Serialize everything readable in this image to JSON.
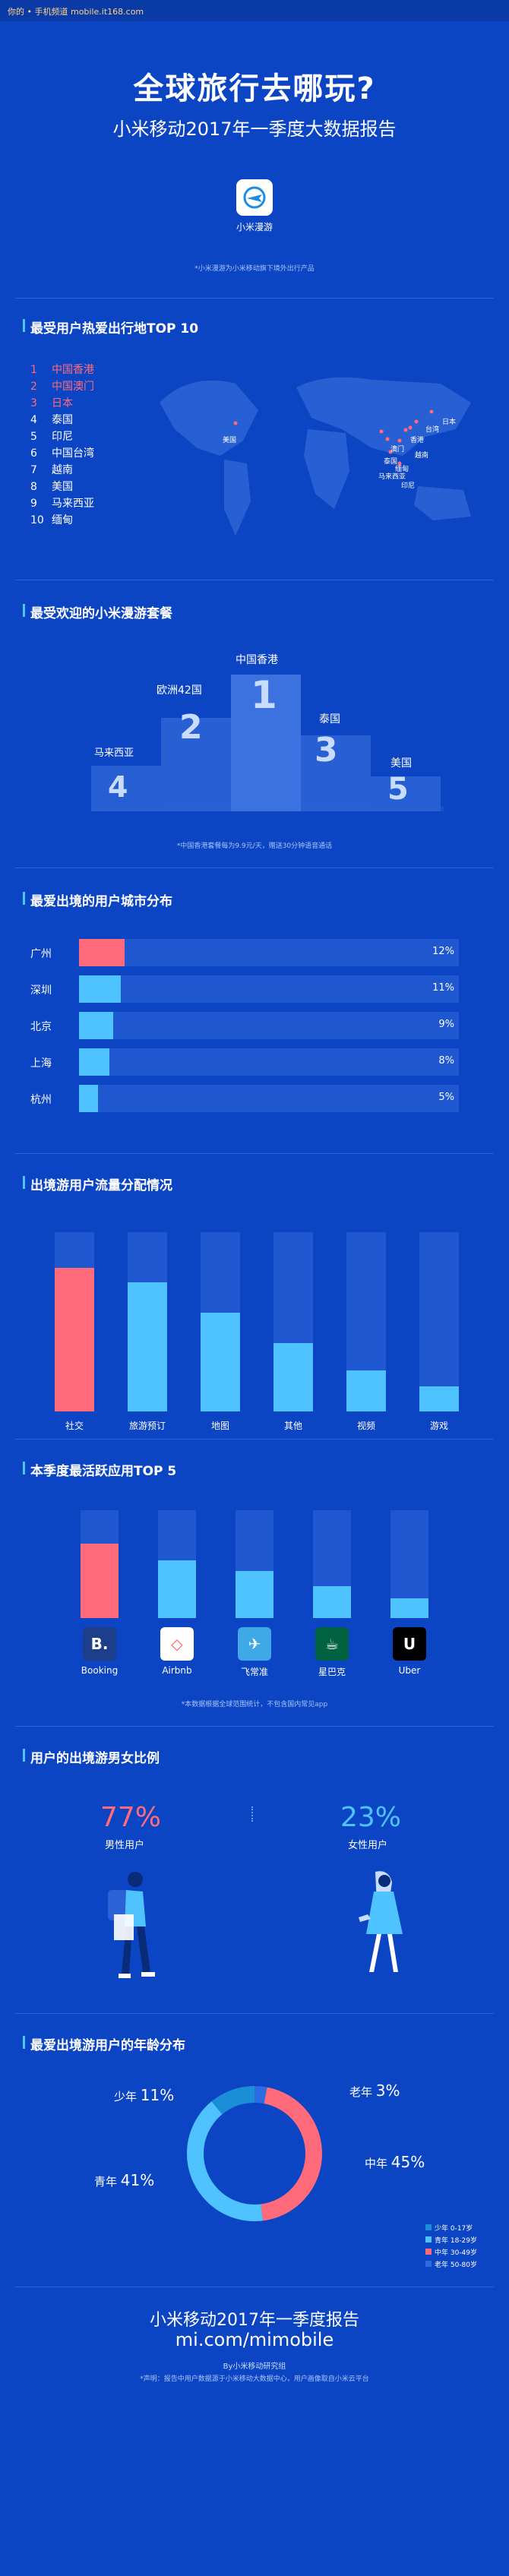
{
  "topbar": {
    "text": "你的 • 手机频道 mobile.it168.com"
  },
  "header": {
    "title": "全球旅行去哪玩?",
    "subtitle": "小米移动2017年一季度大数据报告",
    "app_name": "小米漫游",
    "note": "*小米漫游为小米移动旗下境外出行产品"
  },
  "colors": {
    "bg": "#0c45c4",
    "red": "#ff6b7a",
    "cyan": "#4fc3ff",
    "track": "#1e57d0",
    "dark": "#0a3aa6"
  },
  "section1": {
    "title": "最受用户热爱出行地TOP 10",
    "items": [
      {
        "n": "1",
        "name": "中国香港"
      },
      {
        "n": "2",
        "name": "中国澳门"
      },
      {
        "n": "3",
        "name": "日本"
      },
      {
        "n": "4",
        "name": "泰国"
      },
      {
        "n": "5",
        "name": "印尼"
      },
      {
        "n": "6",
        "name": "中国台湾"
      },
      {
        "n": "7",
        "name": "越南"
      },
      {
        "n": "8",
        "name": "美国"
      },
      {
        "n": "9",
        "name": "马来西亚"
      },
      {
        "n": "10",
        "name": "缅甸"
      }
    ],
    "map_labels": [
      "美国",
      "日本",
      "台湾",
      "香港",
      "澳门",
      "越南",
      "泰国",
      "缅甸",
      "马来西亚",
      "印尼"
    ]
  },
  "section2": {
    "title": "最受欢迎的小米漫游套餐",
    "podium": [
      {
        "name": "马来西亚",
        "rank": "4"
      },
      {
        "name": "欧洲42国",
        "rank": "2"
      },
      {
        "name": "中国香港",
        "rank": "1"
      },
      {
        "name": "泰国",
        "rank": "3"
      },
      {
        "name": "美国",
        "rank": "5"
      }
    ],
    "note": "*中国香港套餐每为9.9元/天，赠送30分钟语音通话"
  },
  "section3": {
    "title": "最爱出境的用户城市分布",
    "rows": [
      {
        "city": "广州",
        "pct": "12%",
        "value": 12
      },
      {
        "city": "深圳",
        "pct": "11%",
        "value": 11
      },
      {
        "city": "北京",
        "pct": "9%",
        "value": 9
      },
      {
        "city": "上海",
        "pct": "8%",
        "value": 8
      },
      {
        "city": "杭州",
        "pct": "5%",
        "value": 5
      }
    ]
  },
  "section4": {
    "title": "出境游用户流量分配情况"
  },
  "section5": {
    "title": "本季度最活跃应用TOP 5",
    "apps": [
      {
        "name": "Booking",
        "logo": "B.",
        "icon": "booking-icon",
        "color": "#1d3e8a",
        "value": 1.0
      },
      {
        "name": "Airbnb",
        "logo": "◇",
        "icon": "airbnb-icon",
        "color": "#ffffff",
        "value": 0.78
      },
      {
        "name": "飞常准",
        "logo": "✈",
        "icon": "feichangzhun-icon",
        "color": "#3fa9e8",
        "value": 0.63
      },
      {
        "name": "星巴克",
        "logo": "☕",
        "icon": "starbucks-icon",
        "color": "#006241",
        "value": 0.43
      },
      {
        "name": "Uber",
        "logo": "U",
        "icon": "uber-icon",
        "color": "#000000",
        "value": 0.27
      }
    ],
    "note": "*本数据根据全球范围统计，不包含国内常见app"
  },
  "section6": {
    "title": "用户的出境游男女比例",
    "male_pct": "77%",
    "male_label": "男性用户",
    "female_pct": "23%",
    "female_label": "女性用户"
  },
  "section7": {
    "title": "最爱出境游用户的年龄分布",
    "labels": [
      {
        "name": "少年",
        "pct": "11%"
      },
      {
        "name": "老年",
        "pct": "3%"
      },
      {
        "name": "青年",
        "pct": "41%"
      },
      {
        "name": "中年",
        "pct": "45%"
      }
    ],
    "legend": [
      {
        "text": "少年 0-17岁",
        "color": "#1a8fd8"
      },
      {
        "text": "青年 18-29岁",
        "color": "#4fc3ff"
      },
      {
        "text": "中年 30-49岁",
        "color": "#ff6b7a"
      },
      {
        "text": "老年 50-80岁",
        "color": "#2d6be0"
      }
    ]
  },
  "footer": {
    "title": "小米移动2017年一季度报告",
    "url": "mi.com/mimobile",
    "by": "By小米移动研究组",
    "statement": "*声明：报告中用户数据源于小米移动大数据中心，用户画像取自小米云平台"
  },
  "chart_data": [
    {
      "type": "bar",
      "title": "最爱出境的用户城市分布",
      "categories": [
        "广州",
        "深圳",
        "北京",
        "上海",
        "杭州"
      ],
      "values": [
        12,
        11,
        9,
        8,
        5
      ],
      "ylim": [
        0,
        100
      ]
    },
    {
      "type": "bar",
      "title": "出境游用户流量分配情况",
      "categories": [
        "社交",
        "旅游预订",
        "地图",
        "其他",
        "视频",
        "游戏"
      ],
      "values": [
        0.8,
        0.72,
        0.55,
        0.38,
        0.23,
        0.14
      ],
      "ylim": [
        0,
        1
      ]
    },
    {
      "type": "bar",
      "title": "本季度最活跃应用TOP 5",
      "categories": [
        "Booking",
        "Airbnb",
        "飞常准",
        "星巴克",
        "Uber"
      ],
      "values": [
        1.0,
        0.78,
        0.63,
        0.43,
        0.27
      ],
      "ylim": [
        0,
        1.45
      ]
    },
    {
      "type": "pie",
      "title": "最爱出境游用户的年龄分布",
      "categories": [
        "少年",
        "青年",
        "中年",
        "老年"
      ],
      "values": [
        11,
        41,
        45,
        3
      ]
    }
  ]
}
